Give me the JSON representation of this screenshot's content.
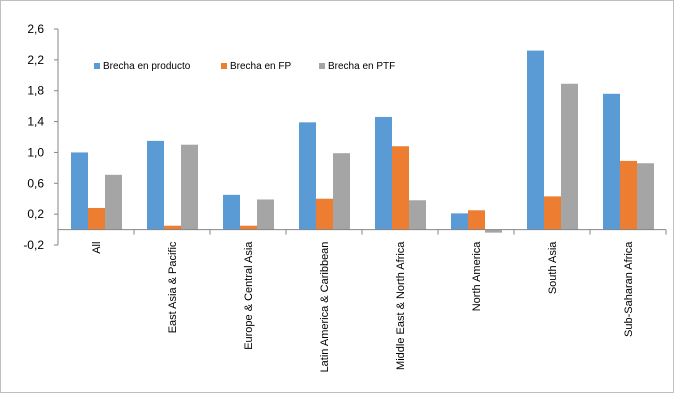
{
  "chart_data": {
    "type": "bar",
    "categories": [
      "All",
      "East Asia & Pacific",
      "Europe & Central Asia",
      "Latin America & Caribbean",
      "Middle East & North Africa",
      "North America",
      "South Asia",
      "Sub-Saharan Africa"
    ],
    "series": [
      {
        "name": "Brecha en producto",
        "color": "#5b9bd5",
        "values": [
          1.0,
          1.15,
          0.45,
          1.39,
          1.46,
          0.21,
          2.32,
          1.76
        ]
      },
      {
        "name": "Brecha en FP",
        "color": "#ed7d31",
        "values": [
          0.28,
          0.05,
          0.05,
          0.4,
          1.08,
          0.25,
          0.43,
          0.89
        ]
      },
      {
        "name": "Brecha en PTF",
        "color": "#a5a5a5",
        "values": [
          0.71,
          1.1,
          0.39,
          0.99,
          0.38,
          -0.04,
          1.89,
          0.86
        ]
      }
    ],
    "ylim": [
      -0.2,
      2.6
    ],
    "yticks": [
      "-0,2",
      "0,2",
      "0,6",
      "1,0",
      "1,4",
      "1,8",
      "2,2",
      "2,6"
    ],
    "ytick_values": [
      -0.2,
      0.2,
      0.6,
      1.0,
      1.4,
      1.8,
      2.2,
      2.6
    ],
    "grid": false,
    "legend_position": "top-left",
    "title": "",
    "xlabel": "",
    "ylabel": ""
  }
}
